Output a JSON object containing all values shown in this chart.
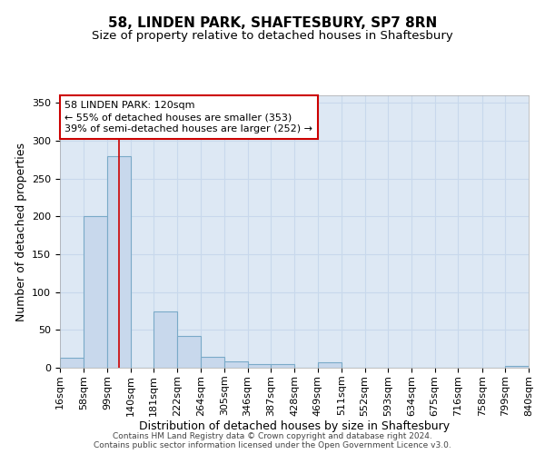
{
  "title": "58, LINDEN PARK, SHAFTESBURY, SP7 8RN",
  "subtitle": "Size of property relative to detached houses in Shaftesbury",
  "xlabel": "Distribution of detached houses by size in Shaftesbury",
  "ylabel": "Number of detached properties",
  "bar_color": "#c8d8ec",
  "bar_edge_color": "#7aaac8",
  "bar_heights": [
    13,
    200,
    280,
    0,
    75,
    42,
    15,
    9,
    5,
    5,
    0,
    7,
    0,
    0,
    0,
    0,
    0,
    0,
    0,
    2
  ],
  "bin_edges": [
    16,
    58,
    99,
    140,
    181,
    222,
    264,
    305,
    346,
    387,
    428,
    469,
    511,
    552,
    593,
    634,
    675,
    716,
    758,
    799,
    840
  ],
  "bin_labels": [
    "16sqm",
    "58sqm",
    "99sqm",
    "140sqm",
    "181sqm",
    "222sqm",
    "264sqm",
    "305sqm",
    "346sqm",
    "387sqm",
    "428sqm",
    "469sqm",
    "511sqm",
    "552sqm",
    "593sqm",
    "634sqm",
    "675sqm",
    "716sqm",
    "758sqm",
    "799sqm",
    "840sqm"
  ],
  "ylim": [
    0,
    360
  ],
  "yticks": [
    0,
    50,
    100,
    150,
    200,
    250,
    300,
    350
  ],
  "property_line_x": 120,
  "property_line_color": "#cc0000",
  "annotation_line1": "58 LINDEN PARK: 120sqm",
  "annotation_line2": "← 55% of detached houses are smaller (353)",
  "annotation_line3": "39% of semi-detached houses are larger (252) →",
  "annotation_box_color": "#ffffff",
  "annotation_box_edge_color": "#cc0000",
  "grid_color": "#c8d8ec",
  "plot_bg_color": "#dde8f4",
  "footer_text": "Contains HM Land Registry data © Crown copyright and database right 2024.\nContains public sector information licensed under the Open Government Licence v3.0.",
  "title_fontsize": 11,
  "subtitle_fontsize": 9.5,
  "ylabel_fontsize": 9,
  "xlabel_fontsize": 9,
  "tick_fontsize": 8,
  "ann_fontsize": 8,
  "footer_fontsize": 6.5
}
